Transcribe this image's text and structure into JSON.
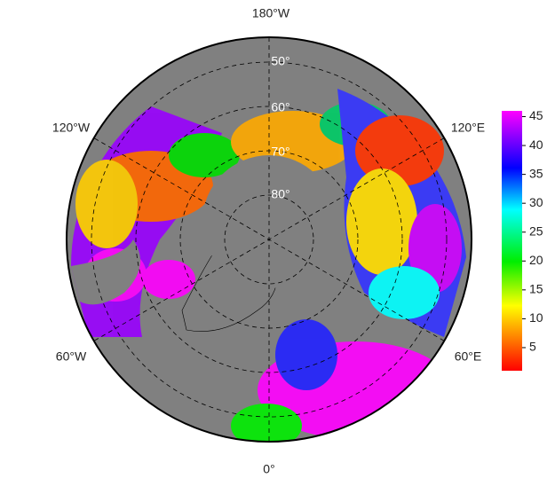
{
  "map": {
    "longitude_labels": [
      "180°W",
      "120°E",
      "60°E",
      "0°",
      "60°W",
      "120°W"
    ],
    "latitude_labels": [
      "50°",
      "60°",
      "70°",
      "80°"
    ],
    "colorbar": {
      "lim": [
        1,
        46
      ],
      "ticks": [
        5,
        10,
        15,
        20,
        25,
        30,
        35,
        40,
        45
      ]
    }
  }
}
